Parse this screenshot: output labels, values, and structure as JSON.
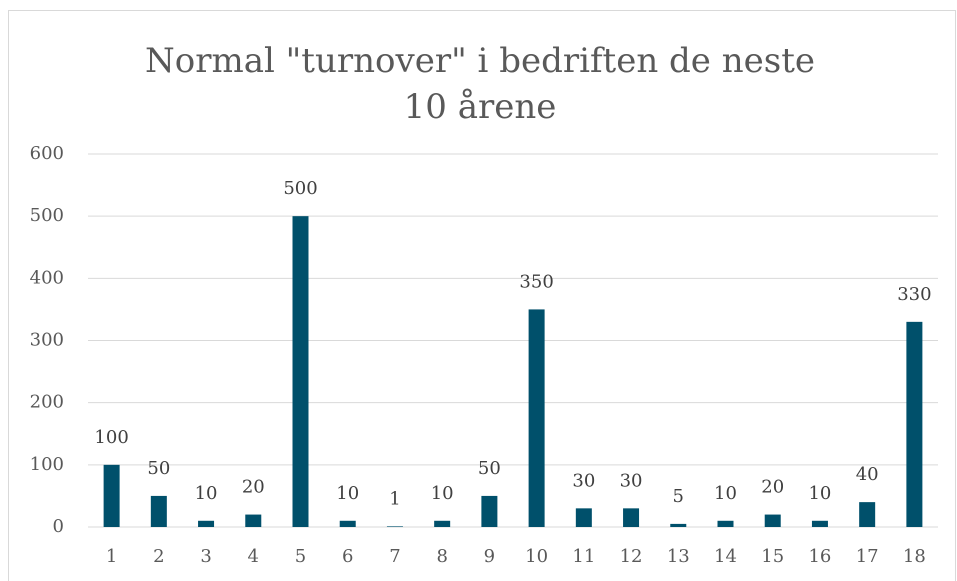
{
  "chart_data": {
    "type": "bar",
    "title": "Normal \"turnover\" i bedriften de neste 10 årene",
    "categories": [
      "1",
      "2",
      "3",
      "4",
      "5",
      "6",
      "7",
      "8",
      "9",
      "10",
      "11",
      "12",
      "13",
      "14",
      "15",
      "16",
      "17",
      "18"
    ],
    "values": [
      100,
      50,
      10,
      20,
      500,
      10,
      1,
      10,
      50,
      350,
      30,
      30,
      5,
      10,
      20,
      10,
      40,
      330
    ],
    "color": "#00506b",
    "ylim": [
      0,
      600
    ],
    "yticks": [
      0,
      100,
      200,
      300,
      400,
      500,
      600
    ],
    "grid": true
  }
}
